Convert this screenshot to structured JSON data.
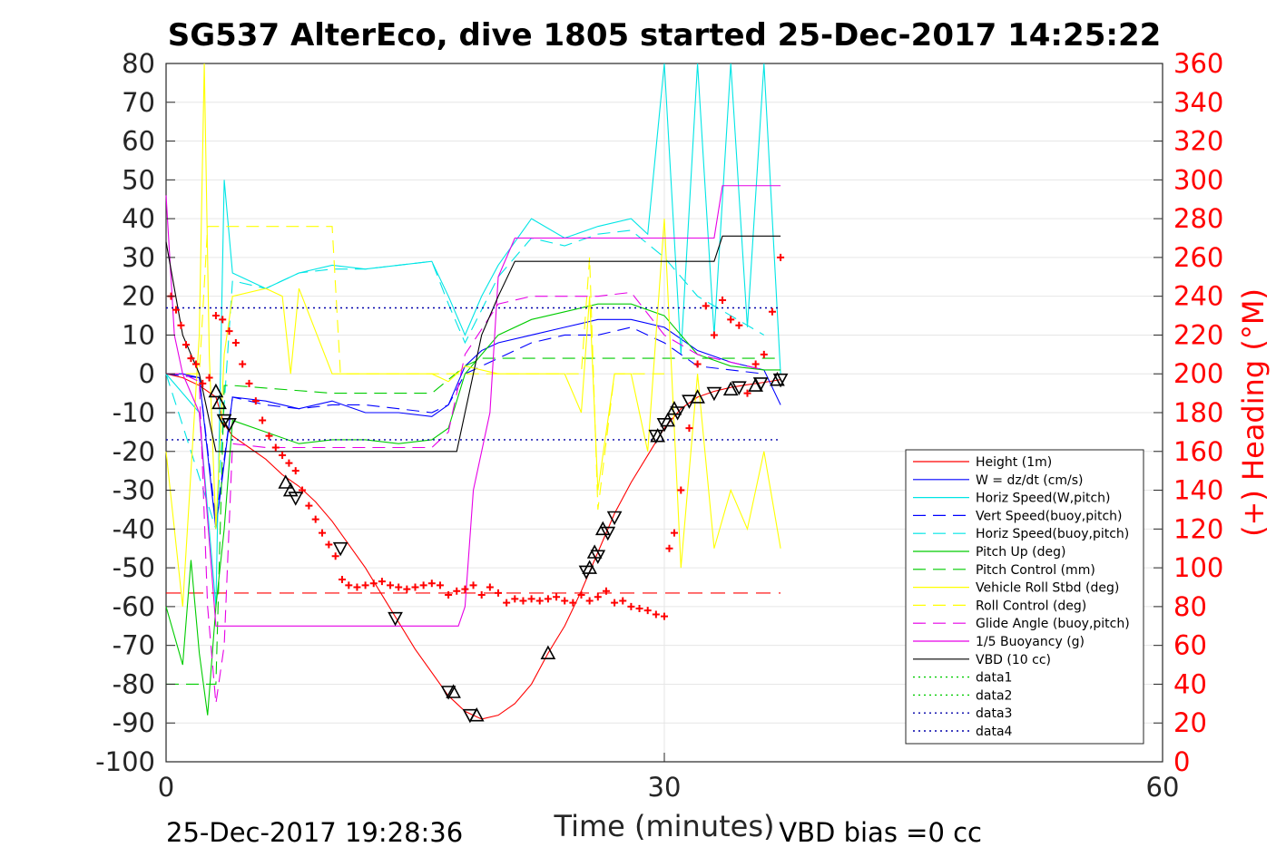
{
  "chart_data": {
    "type": "line",
    "title": "SG537 AlterEco, dive 1805 started 25-Dec-2017 14:25:22",
    "xlabel": "Time (minutes)",
    "ylabel": "",
    "ylabel_right": "(+) Heading (°M)",
    "xlim": [
      0,
      60
    ],
    "ylim": [
      -100,
      80
    ],
    "ylim_right": [
      0,
      360
    ],
    "xticks": [
      "0",
      "30",
      "60"
    ],
    "yticks": [
      "80",
      "70",
      "60",
      "50",
      "40",
      "30",
      "20",
      "10",
      "0",
      "-10",
      "-20",
      "-30",
      "-40",
      "-50",
      "-60",
      "-70",
      "-80",
      "-90",
      "-100"
    ],
    "yticks_right": [
      "360",
      "340",
      "320",
      "300",
      "280",
      "260",
      "240",
      "220",
      "200",
      "180",
      "160",
      "140",
      "120",
      "100",
      "80",
      "60",
      "40",
      "20",
      "0"
    ],
    "grid": true,
    "legend_position": "lower-right",
    "footer_left": "25-Dec-2017 19:28:36",
    "footer_right": "VBD bias =0 cc",
    "series": [
      {
        "name": "Height (1m)",
        "color": "#ff0000",
        "style": "solid",
        "x": [
          0,
          1,
          2,
          3,
          3.5,
          4,
          5,
          6,
          7,
          8,
          9,
          10,
          11,
          12,
          13,
          14,
          15,
          16,
          17,
          17.5,
          18,
          19,
          20,
          21,
          22,
          23,
          24,
          25,
          26,
          27,
          28,
          29,
          30,
          31,
          32,
          33,
          34,
          35,
          36,
          37
        ],
        "y": [
          0,
          -1,
          -3,
          -6,
          -13,
          -16,
          -19,
          -22,
          -26,
          -29,
          -33,
          -38,
          -44,
          -50,
          -57,
          -64,
          -71,
          -77,
          -83,
          -85,
          -87,
          -89,
          -88,
          -85,
          -80,
          -72,
          -65,
          -56,
          -46,
          -36,
          -28,
          -21,
          -14,
          -9,
          -6,
          -4.5,
          -3.5,
          -2.8,
          -2.2,
          -1.5
        ]
      },
      {
        "name": "W = dz/dt (cm/s)",
        "color": "#0000ff",
        "style": "solid",
        "x": [
          0,
          1,
          2,
          3,
          4,
          6,
          8,
          10,
          12,
          14,
          16,
          17,
          18,
          19,
          20,
          22,
          24,
          26,
          28,
          30,
          32,
          34,
          36,
          37
        ],
        "y": [
          0,
          0,
          -1,
          -40,
          -6,
          -7,
          -9,
          -7,
          -10,
          -10,
          -11,
          -8,
          2,
          6,
          8,
          10,
          12,
          14,
          14,
          12,
          6,
          3,
          1,
          -8
        ]
      },
      {
        "name": "Horiz Speed(W,pitch)",
        "color": "#00e5e5",
        "style": "solid",
        "x": [
          0,
          1,
          2,
          3,
          3.5,
          4,
          6,
          8,
          10,
          12,
          14,
          16,
          17,
          18,
          19,
          20,
          22,
          24,
          26,
          28,
          29,
          30,
          31,
          32,
          33,
          34,
          35,
          36,
          37
        ],
        "y": [
          0,
          -5,
          -10,
          -60,
          50,
          26,
          22,
          26,
          28,
          27,
          28,
          29,
          20,
          10,
          20,
          28,
          40,
          35,
          38,
          40,
          36,
          80,
          5,
          80,
          10,
          80,
          12,
          80,
          0
        ]
      },
      {
        "name": "Vert Speed(buoy,pitch)",
        "color": "#0000ff",
        "style": "dashed",
        "x": [
          0,
          2,
          3,
          4,
          6,
          8,
          10,
          12,
          14,
          16,
          17,
          18,
          20,
          22,
          24,
          26,
          28,
          30,
          32,
          34,
          36
        ],
        "y": [
          0,
          -1,
          -38,
          -6,
          -8,
          -9,
          -8,
          -8,
          -9,
          -10,
          -8,
          0,
          4,
          8,
          10,
          10,
          12,
          8,
          2,
          1,
          0
        ]
      },
      {
        "name": "Horiz Speed(buoy,pitch)",
        "color": "#00e5e5",
        "style": "dashed",
        "x": [
          0,
          3,
          4,
          6,
          8,
          10,
          12,
          14,
          16,
          17,
          18,
          20,
          22,
          24,
          26,
          28,
          30,
          32,
          34,
          36
        ],
        "y": [
          0,
          -40,
          24,
          22,
          26,
          27,
          27,
          28,
          29,
          18,
          8,
          25,
          35,
          33,
          36,
          37,
          30,
          20,
          15,
          10
        ]
      },
      {
        "name": "Pitch Up (deg)",
        "color": "#00cc00",
        "style": "solid",
        "x": [
          0,
          1,
          1.5,
          2,
          2.5,
          3,
          3.5,
          4,
          6,
          8,
          10,
          12,
          14,
          16,
          17,
          18,
          20,
          22,
          24,
          26,
          28,
          30,
          32,
          34,
          36,
          37
        ],
        "y": [
          -60,
          -75,
          -48,
          -72,
          -88,
          -60,
          -40,
          -12,
          -15,
          -18,
          -17,
          -17,
          -18,
          -17,
          -14,
          0,
          10,
          14,
          16,
          18,
          18,
          15,
          5,
          2,
          1,
          1
        ]
      },
      {
        "name": "Pitch Control (mm)",
        "color": "#00cc00",
        "style": "dashed",
        "x": [
          0,
          1,
          2,
          3,
          3.5,
          4,
          10,
          16,
          18,
          19,
          20,
          24,
          30,
          32,
          37
        ],
        "y": [
          -80,
          -80,
          -80,
          -80,
          -3,
          -3,
          -5,
          -5,
          2,
          4,
          4,
          4,
          4,
          4,
          4
        ]
      },
      {
        "name": "Vehicle Roll Stbd (deg)",
        "color": "#ffff00",
        "style": "solid",
        "x": [
          0,
          1,
          2,
          2.3,
          2.6,
          3,
          3.5,
          4,
          6,
          7,
          7.5,
          8,
          10,
          12,
          14,
          16,
          17,
          18,
          20,
          24,
          25,
          25.5,
          26,
          27,
          28,
          29,
          30,
          31,
          32,
          33,
          34,
          35,
          36,
          37
        ],
        "y": [
          -20,
          -60,
          10,
          80,
          5,
          -40,
          5,
          20,
          22,
          20,
          0,
          22,
          0,
          0,
          0,
          0,
          -2,
          2,
          0,
          0,
          -10,
          20,
          -30,
          0,
          0,
          -20,
          40,
          -50,
          0,
          -45,
          -30,
          -40,
          -20,
          -45
        ]
      },
      {
        "name": "Roll Control (deg)",
        "color": "#ffff00",
        "style": "dashed",
        "x": [
          0,
          2,
          2.5,
          3,
          4,
          6,
          8,
          10,
          10.5,
          12,
          16,
          18,
          20,
          25,
          25.5,
          26,
          27,
          28,
          30
        ],
        "y": [
          0,
          0,
          38,
          38,
          38,
          38,
          38,
          38,
          0,
          0,
          0,
          0,
          0,
          0,
          30,
          -35,
          0,
          0,
          0
        ]
      },
      {
        "name": "Glide Angle (buoy,pitch)",
        "color": "#e600e6",
        "style": "dashed",
        "x": [
          0,
          1,
          2,
          2.5,
          3,
          3.5,
          4,
          6,
          8,
          10,
          12,
          14,
          16,
          17,
          18,
          20,
          22,
          24,
          26,
          28,
          30,
          32,
          34,
          36
        ],
        "y": [
          0,
          0,
          -2,
          -60,
          -85,
          -70,
          -18,
          -19,
          -19,
          -19,
          -19,
          -19,
          -19,
          -15,
          5,
          18,
          20,
          20,
          20,
          21,
          10,
          5,
          3,
          1
        ]
      },
      {
        "name": "1/5 Buoyancy (g)",
        "color": "#e600e6",
        "style": "solid",
        "x": [
          0,
          0.5,
          1,
          2,
          3,
          3.1,
          10,
          17,
          17.6,
          18,
          18.5,
          19.5,
          20,
          21,
          22,
          24,
          26,
          28,
          30,
          32,
          33,
          33.5,
          34,
          36,
          37
        ],
        "y": [
          46,
          10,
          0,
          -10,
          -65,
          -65,
          -65,
          -65,
          -65,
          -60,
          -30,
          -10,
          25,
          35,
          35,
          35,
          35,
          35,
          35,
          35,
          35,
          48.5,
          48.5,
          48.5,
          48.5
        ]
      },
      {
        "name": "VBD (10 cc)",
        "color": "#000000",
        "style": "solid",
        "x": [
          0,
          1,
          2,
          2.5,
          3,
          4,
          10,
          17.5,
          18,
          19,
          20,
          21,
          22,
          24,
          26,
          28,
          30,
          31,
          32,
          33,
          33.5,
          34,
          37
        ],
        "y": [
          34,
          10,
          0,
          -10,
          -20,
          -20,
          -20,
          -20,
          -10,
          10,
          20,
          29,
          29,
          29,
          29,
          29,
          29,
          29,
          29,
          29,
          35.5,
          35.5,
          35.5
        ]
      },
      {
        "name": "data1",
        "color": "#00cc00",
        "style": "dotted",
        "x": [],
        "y": []
      },
      {
        "name": "data2",
        "color": "#00cc00",
        "style": "dotted",
        "x": [],
        "y": []
      },
      {
        "name": "data3",
        "color": "#0000aa",
        "style": "dotted",
        "x": [
          0,
          37
        ],
        "y": [
          17,
          17
        ]
      },
      {
        "name": "data4",
        "color": "#0000aa",
        "style": "dotted",
        "x": [
          0,
          37
        ],
        "y": [
          -17,
          -17
        ]
      }
    ],
    "heading_reference": {
      "color": "#ff0000",
      "style": "dashed",
      "x": [
        0,
        37
      ],
      "y_right": [
        87,
        87
      ]
    },
    "heading_points": {
      "color": "#ff0000",
      "marker": "plus",
      "x": [
        0.3,
        0.6,
        0.9,
        1.2,
        1.5,
        1.8,
        2.2,
        2.6,
        3.0,
        3.4,
        3.8,
        4.2,
        4.6,
        5.0,
        5.4,
        5.8,
        6.2,
        6.6,
        7.0,
        7.4,
        7.8,
        8.2,
        8.6,
        9.0,
        9.4,
        9.8,
        10.2,
        10.6,
        11.0,
        11.5,
        12.0,
        12.5,
        13.0,
        13.5,
        14.0,
        14.5,
        15.0,
        15.5,
        16.0,
        16.5,
        17.0,
        17.5,
        18.0,
        18.5,
        19.0,
        19.5,
        20.0,
        20.5,
        21.0,
        21.5,
        22.0,
        22.5,
        23.0,
        23.5,
        24.0,
        24.5,
        25.0,
        25.5,
        26.0,
        26.5,
        27.0,
        27.5,
        28.0,
        28.5,
        29.0,
        29.5,
        30.0,
        30.3,
        30.6,
        31.0,
        31.5,
        32.0,
        32.5,
        33.0,
        33.5,
        34.0,
        34.5,
        35.0,
        35.5,
        36.0,
        36.5,
        37.0
      ],
      "y": [
        240,
        233,
        225,
        215,
        208,
        205,
        195,
        198,
        230,
        228,
        222,
        216,
        205,
        195,
        186,
        176,
        168,
        162,
        158,
        154,
        150,
        140,
        132,
        125,
        118,
        112,
        106,
        94,
        91,
        90,
        91,
        92,
        93,
        91,
        90,
        89,
        90,
        91,
        92,
        91,
        86,
        88,
        89,
        91,
        86,
        90,
        87,
        82,
        84,
        83,
        84,
        83,
        84,
        85,
        83,
        82,
        86,
        83,
        85,
        88,
        82,
        83,
        80,
        79,
        78,
        76,
        75,
        110,
        118,
        140,
        172,
        205,
        235,
        220,
        238,
        228,
        225,
        190,
        205,
        210,
        232,
        260
      ]
    },
    "depth_markers": {
      "color": "#000000",
      "up_x": [
        3.0,
        3.2,
        7.2,
        7.5,
        23.0,
        17.3,
        18.7,
        25.5,
        25.8,
        26.3,
        29.6,
        30.2,
        30.6,
        32.0,
        34.0,
        35.5,
        36.8
      ],
      "up_y": [
        -4.5,
        -7.5,
        -28,
        -30,
        -72,
        -82,
        -88,
        -50,
        -46,
        -40,
        -16,
        -12,
        -9,
        -6,
        -4,
        -3,
        -1.5
      ],
      "down_x": [
        3.5,
        3.8,
        7.8,
        10.5,
        13.8,
        17.0,
        18.3,
        25.3,
        26.0,
        26.6,
        27.0,
        29.5,
        30.0,
        30.8,
        31.5,
        33.0,
        34.5,
        35.8,
        37.0
      ],
      "down_y": [
        -12,
        -13,
        -32,
        -45,
        -63,
        -82,
        -88,
        -51,
        -47,
        -41,
        -37,
        -16,
        -13,
        -10,
        -7,
        -5,
        -3.5,
        -2.5,
        -1.5
      ]
    }
  }
}
